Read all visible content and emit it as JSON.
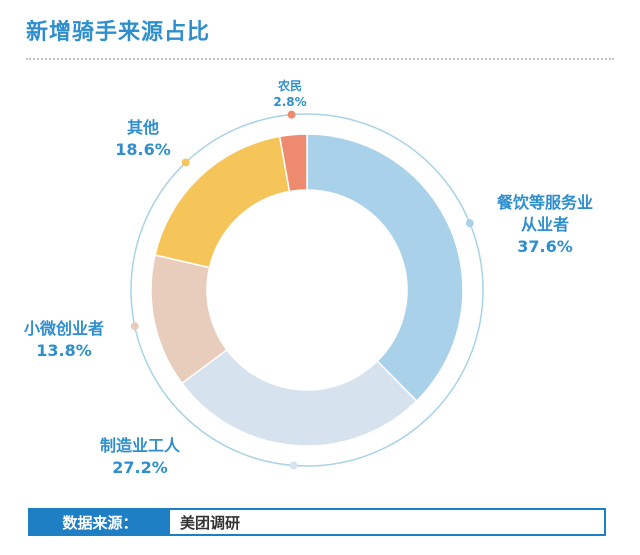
{
  "title": "新增骑手来源占比",
  "source": {
    "label": "数据来源：",
    "value": "美团调研"
  },
  "chart_data": {
    "type": "pie",
    "title": "新增骑手来源占比",
    "donut": true,
    "legend": "none",
    "slices": [
      {
        "name": "餐饮等服务业\n从业者",
        "lines": [
          "餐饮等服务业",
          "从业者"
        ],
        "pct_label": "37.6%",
        "value": 37.6,
        "color": "#a9d1ea"
      },
      {
        "name": "制造业工人",
        "lines": [
          "制造业工人"
        ],
        "pct_label": "27.2%",
        "value": 27.2,
        "color": "#d6e2ee"
      },
      {
        "name": "小微创业者",
        "lines": [
          "小微创业者"
        ],
        "pct_label": "13.8%",
        "value": 13.8,
        "color": "#e8ccbc"
      },
      {
        "name": "其他",
        "lines": [
          "其他"
        ],
        "pct_label": "18.6%",
        "value": 18.6,
        "color": "#f5c55a"
      },
      {
        "name": "农民",
        "lines": [
          "农民"
        ],
        "pct_label": "2.8%",
        "value": 2.8,
        "color": "#ee8a6f"
      }
    ]
  }
}
